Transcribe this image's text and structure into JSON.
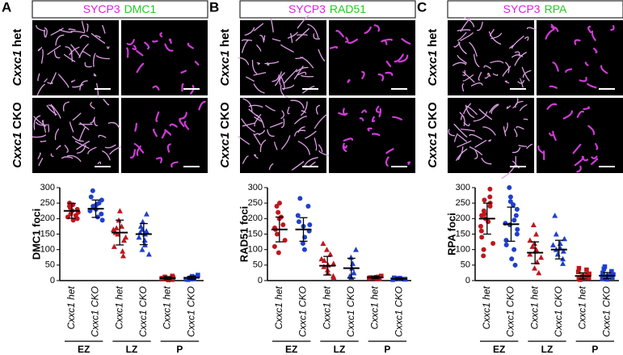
{
  "panels": [
    {
      "letter": "A",
      "header": [
        {
          "text": "SYCP3",
          "color": "#e020e0"
        },
        {
          "text": "DMC1",
          "color": "#22cc22"
        }
      ]
    },
    {
      "letter": "B",
      "header": [
        {
          "text": "SYCP3",
          "color": "#e020e0"
        },
        {
          "text": "RAD51",
          "color": "#22cc22"
        }
      ]
    },
    {
      "letter": "C",
      "header": [
        {
          "text": "SYCP3",
          "color": "#e020e0"
        },
        {
          "text": "RPA",
          "color": "#22cc22"
        }
      ]
    }
  ],
  "row_labels": [
    {
      "gene": "Cxxc1",
      "suffix": "het"
    },
    {
      "gene": "Cxxc1",
      "suffix": "CKO"
    }
  ],
  "chart_data": [
    {
      "type": "dotplot",
      "ylabel": "DMC1 foci",
      "ylim": [
        0,
        300
      ],
      "yticks": [
        0,
        50,
        100,
        150,
        200,
        250,
        300
      ],
      "categories": [
        "Cxxc1 het",
        "Cxxc1 CKO",
        "Cxxc1 het",
        "Cxxc1 CKO",
        "Cxxc1 het",
        "Cxxc1 CKO"
      ],
      "groups": [
        "EZ",
        "LZ",
        "P"
      ],
      "markers": [
        "circle",
        "triangle",
        "square"
      ],
      "colors": [
        "#c0161c",
        "#1f3fcf",
        "#c0161c",
        "#1f3fcf",
        "#c0161c",
        "#1f3fcf"
      ],
      "points": [
        [
          250,
          240,
          230,
          225,
          220,
          215,
          210,
          205,
          195,
          245,
          235,
          200
        ],
        [
          290,
          260,
          250,
          240,
          235,
          230,
          225,
          215,
          205,
          195,
          270,
          245
        ],
        [
          225,
          195,
          175,
          165,
          155,
          150,
          140,
          130,
          110,
          95,
          80,
          170
        ],
        [
          215,
          190,
          175,
          165,
          155,
          150,
          140,
          130,
          115,
          100,
          85,
          160
        ],
        [
          2,
          4,
          5,
          7,
          8,
          10,
          12,
          15,
          3,
          6
        ],
        [
          3,
          5,
          6,
          8,
          9,
          11,
          14,
          18,
          4,
          7
        ]
      ],
      "means": [
        225,
        232,
        155,
        150,
        8,
        9
      ],
      "sds": [
        24,
        28,
        40,
        34,
        5,
        5
      ]
    },
    {
      "type": "dotplot",
      "ylabel": "RAD51 foci",
      "ylim": [
        0,
        300
      ],
      "yticks": [
        0,
        50,
        100,
        150,
        200,
        250,
        300
      ],
      "categories": [
        "Cxxc1 het",
        "Cxxc1 CKO",
        "Cxxc1 het",
        "Cxxc1 CKO",
        "Cxxc1 het",
        "Cxxc1 CKO"
      ],
      "groups": [
        "EZ",
        "LZ",
        "P"
      ],
      "markers": [
        "circle",
        "triangle",
        "square"
      ],
      "colors": [
        "#c0161c",
        "#1f3fcf",
        "#c0161c",
        "#1f3fcf",
        "#c0161c",
        "#1f3fcf"
      ],
      "points": [
        [
          250,
          240,
          220,
          200,
          180,
          165,
          150,
          130,
          110,
          90,
          170,
          205
        ],
        [
          265,
          240,
          210,
          190,
          175,
          160,
          140,
          120,
          100,
          180
        ],
        [
          120,
          100,
          85,
          70,
          55,
          45,
          35,
          25,
          15,
          10,
          50,
          65
        ],
        [
          100,
          75,
          55,
          40,
          25,
          15,
          10
        ],
        [
          5,
          8,
          10,
          12,
          15,
          6,
          9,
          11
        ],
        [
          3,
          5,
          7,
          9,
          4,
          6,
          8
        ]
      ],
      "means": [
        165,
        165,
        48,
        40,
        10,
        6
      ],
      "sds": [
        40,
        38,
        30,
        32,
        4,
        3
      ]
    },
    {
      "type": "dotplot",
      "ylabel": "RPA foci",
      "ylim": [
        0,
        300
      ],
      "yticks": [
        0,
        50,
        100,
        150,
        200,
        250,
        300
      ],
      "categories": [
        "Cxxc1 het",
        "Cxxc1 CKO",
        "Cxxc1 het",
        "Cxxc1 CKO",
        "Cxxc1 het",
        "Cxxc1 CKO"
      ],
      "groups": [
        "EZ",
        "LZ",
        "P"
      ],
      "markers": [
        "circle",
        "triangle",
        "square"
      ],
      "colors": [
        "#c0161c",
        "#1f3fcf",
        "#c0161c",
        "#1f3fcf",
        "#c0161c",
        "#1f3fcf"
      ],
      "points": [
        [
          295,
          270,
          250,
          240,
          225,
          210,
          200,
          190,
          175,
          160,
          140,
          120,
          100,
          80,
          260,
          215
        ],
        [
          300,
          270,
          245,
          230,
          210,
          195,
          180,
          165,
          150,
          130,
          115,
          100,
          70,
          50,
          255,
          185
        ],
        [
          180,
          150,
          130,
          110,
          95,
          85,
          75,
          60,
          40,
          25,
          120,
          100
        ],
        [
          210,
          150,
          135,
          120,
          105,
          95,
          85,
          70,
          55,
          115,
          100
        ],
        [
          5,
          8,
          10,
          12,
          15,
          18,
          22,
          28,
          35,
          40,
          3,
          14
        ],
        [
          4,
          8,
          10,
          13,
          16,
          20,
          25,
          30,
          38,
          45,
          6,
          17
        ]
      ],
      "means": [
        200,
        182,
        90,
        100,
        15,
        16
      ],
      "sds": [
        50,
        55,
        35,
        30,
        10,
        10
      ]
    }
  ]
}
